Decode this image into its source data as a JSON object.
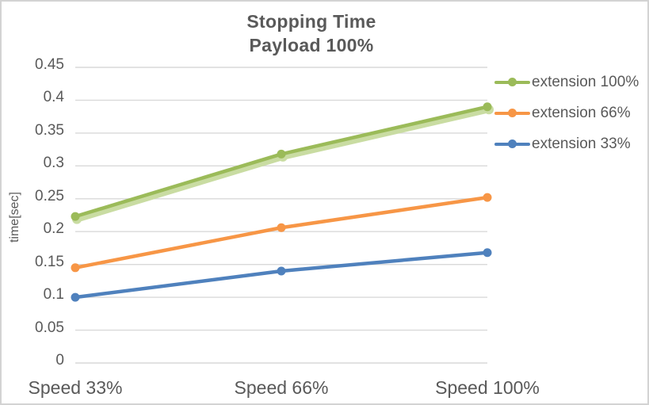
{
  "frame": {
    "background": "#ffffff",
    "border_color": "#d3d3d3",
    "text_color": "#595959"
  },
  "chart_data": {
    "type": "line",
    "title": "Stopping Time",
    "subtitle": "Payload 100%",
    "ylabel": "time[sec]",
    "xlabel": "",
    "categories": [
      "Speed 33%",
      "Speed 66%",
      "Speed 100%"
    ],
    "series": [
      {
        "name": "extension 100%",
        "color": "#9BBB59",
        "shadow_color": "#C9DCA2",
        "values": [
          0.223,
          0.318,
          0.39
        ]
      },
      {
        "name": "extension 66%",
        "color": "#F79646",
        "values": [
          0.145,
          0.206,
          0.252
        ]
      },
      {
        "name": "extension 33%",
        "color": "#4F81BD",
        "values": [
          0.1,
          0.14,
          0.168
        ]
      }
    ],
    "ylim": [
      0,
      0.45
    ],
    "ytick_step": 0.05,
    "yticks": [
      "0",
      "0.05",
      "0.1",
      "0.15",
      "0.2",
      "0.25",
      "0.3",
      "0.35",
      "0.4",
      "0.45"
    ],
    "grid": true,
    "gridline_color": "#D9D9D9",
    "legend_position": "right",
    "marker": "circle"
  }
}
